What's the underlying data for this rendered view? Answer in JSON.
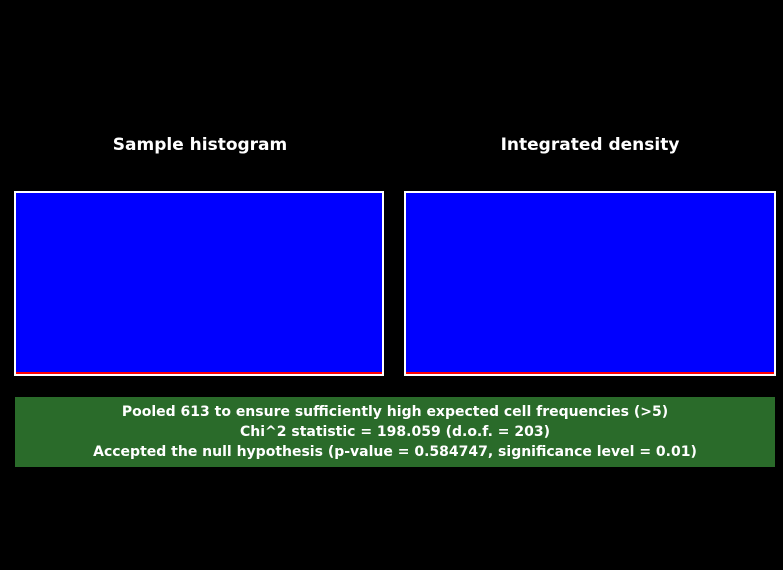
{
  "panels": {
    "left_title": "Sample histogram",
    "right_title": "Integrated density"
  },
  "colors": {
    "background": "#000000",
    "plot_fill": "#0000ff",
    "plot_border": "#ffffff",
    "plot_line": "#ff0000",
    "result_bg": "#2a6b2a"
  },
  "result": {
    "line1": "Pooled 613 to ensure sufficiently high expected cell frequencies (>5)",
    "line2": "Chi^2 statistic = 198.059 (d.o.f. = 203)",
    "line3": "Accepted the null hypothesis (p-value = 0.584747, significance level = 0.01)"
  }
}
